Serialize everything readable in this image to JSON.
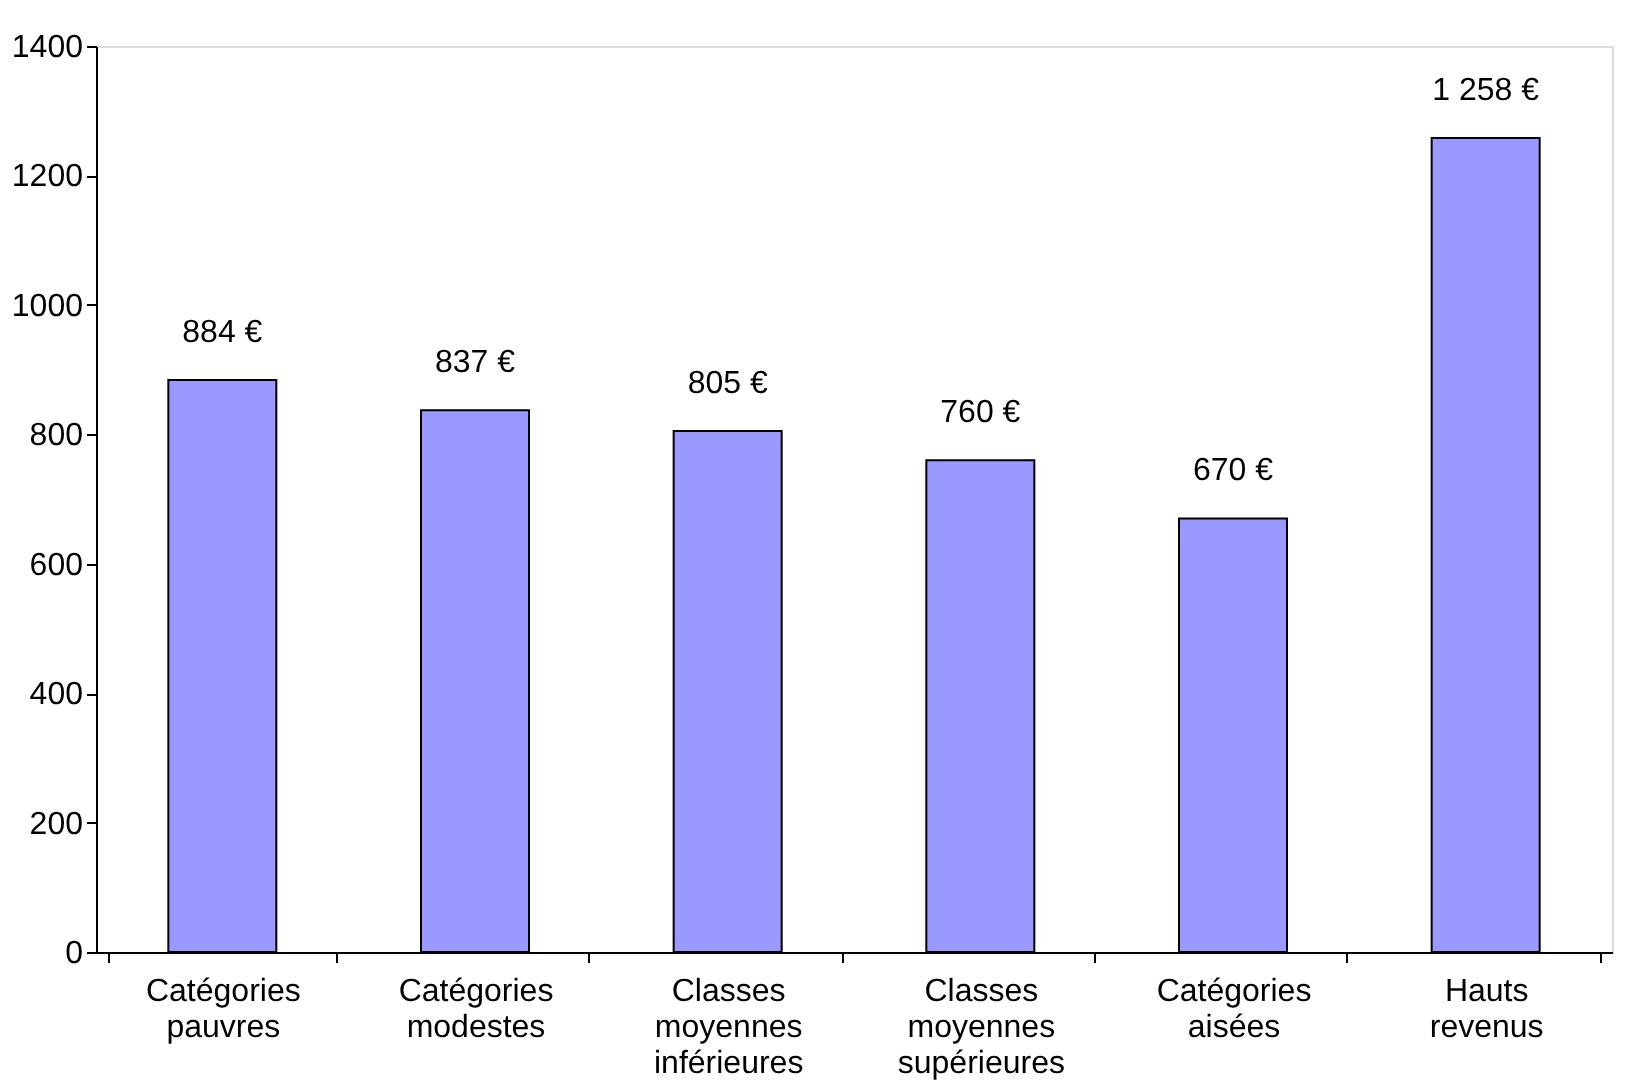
{
  "chart_data": {
    "type": "bar",
    "categories": [
      "Catégories pauvres",
      "Catégories modestes",
      "Classes moyennes inférieures",
      "Classes moyennes supérieures",
      "Catégories aisées",
      "Hauts revenus"
    ],
    "values": [
      884,
      837,
      805,
      760,
      670,
      1258
    ],
    "value_labels": [
      "884 €",
      "837 €",
      "805 €",
      "760 €",
      "670 €",
      "1 258 €"
    ],
    "color": "#9999ff",
    "ylim": [
      0,
      1400
    ],
    "yticks": [
      0,
      200,
      400,
      600,
      800,
      1000,
      1200,
      1400
    ],
    "grid": false
  }
}
